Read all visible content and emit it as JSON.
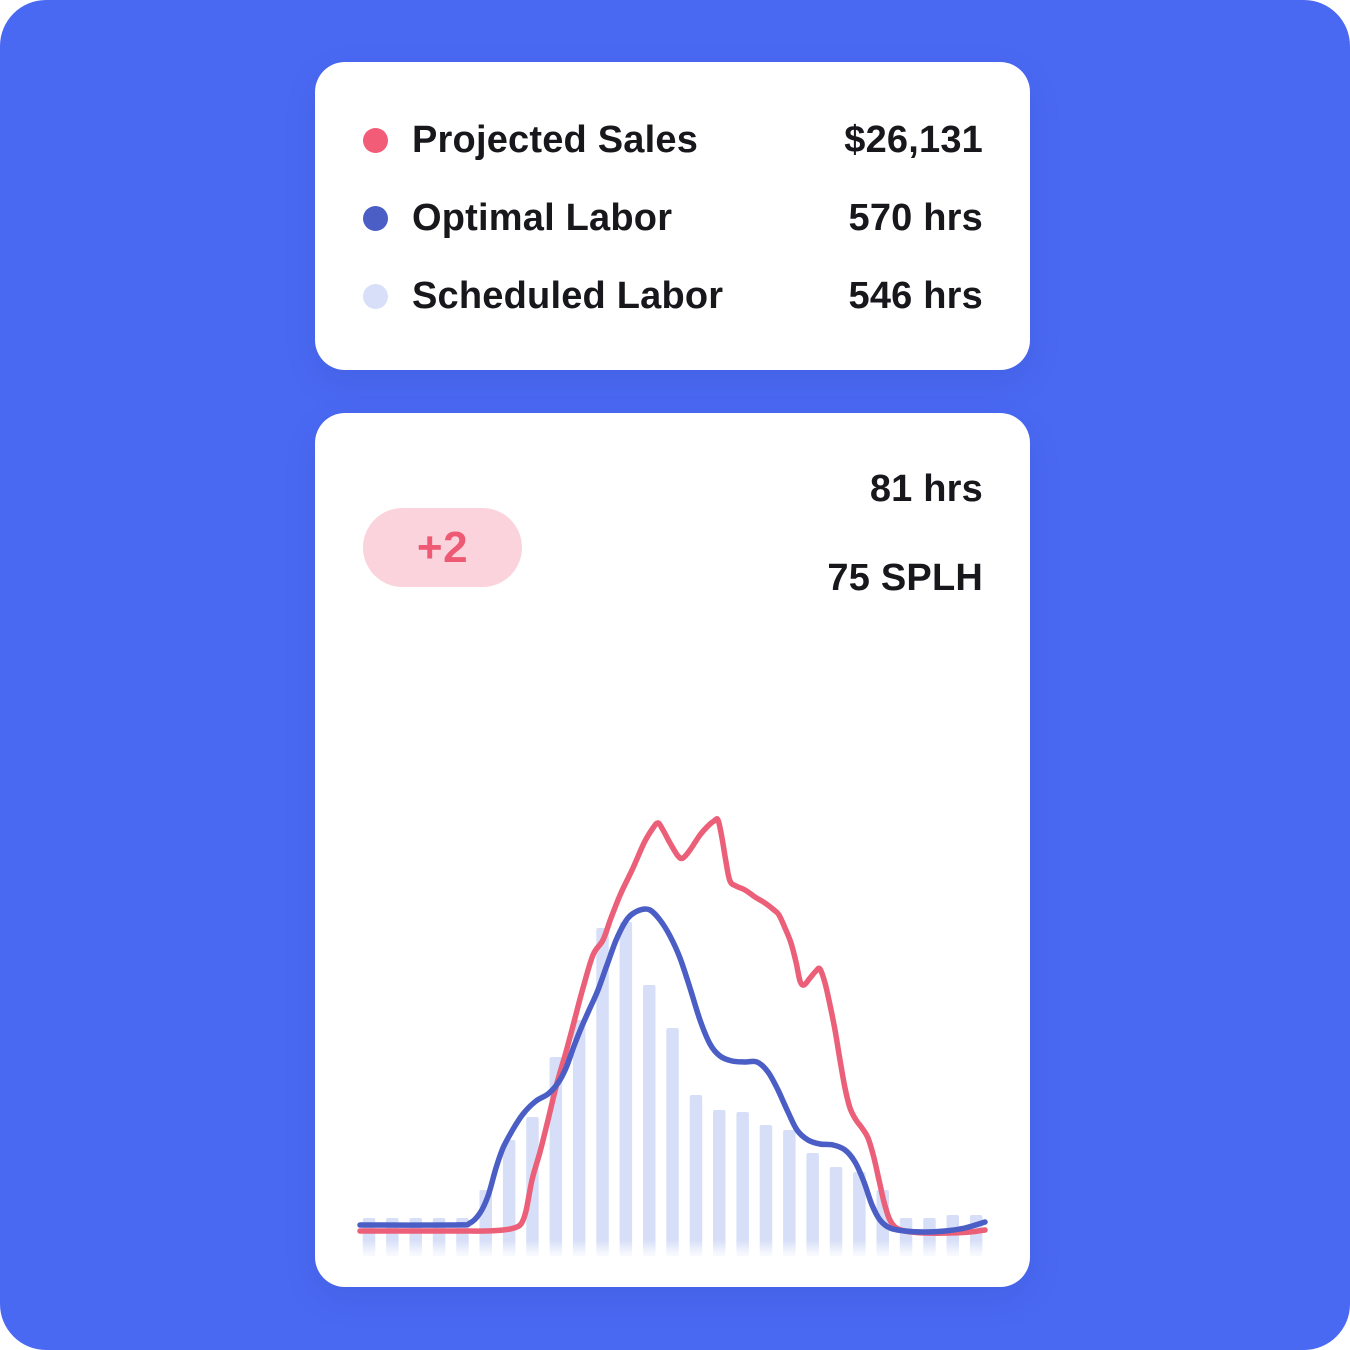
{
  "app": {
    "background_color": "#4A69F2",
    "card_color": "#FFFFFF",
    "text_color": "#17171C"
  },
  "legend_card": {
    "items": [
      {
        "label": "Projected Sales",
        "value": "$26,131",
        "color": "#F25C77"
      },
      {
        "label": "Optimal Labor",
        "value": "570 hrs",
        "color": "#4A5EC6"
      },
      {
        "label": "Scheduled Labor",
        "value": "546 hrs",
        "color": "#D7E0F8"
      }
    ]
  },
  "chart_card": {
    "badge": {
      "label": "+2",
      "bg": "#FBD3DC",
      "color": "#EE5A74"
    },
    "stat_primary": "81 hrs",
    "stat_secondary": "75 SPLH"
  },
  "chart_data": {
    "type": "composite",
    "title": "",
    "x_axis": {
      "labels_visible": false,
      "points": 27,
      "note": "hourly-style slots, no tick labels shown"
    },
    "y_axis": {
      "labels_visible": false,
      "units": "relative pixel height above baseline (no axis shown)"
    },
    "grid": false,
    "legend_position": "separate card above",
    "series": [
      {
        "name": "Projected Sales",
        "type": "line",
        "color": "#EB5F78",
        "points": [
          [
            15,
            9
          ],
          [
            105,
            9
          ],
          [
            140,
            9
          ],
          [
            158,
            10
          ],
          [
            169,
            12
          ],
          [
            176,
            16
          ],
          [
            181,
            29
          ],
          [
            187,
            60
          ],
          [
            195,
            88
          ],
          [
            203,
            120
          ],
          [
            212,
            157
          ],
          [
            221,
            188
          ],
          [
            229,
            218
          ],
          [
            238,
            252
          ],
          [
            248,
            285
          ],
          [
            258,
            300
          ],
          [
            266,
            322
          ],
          [
            276,
            347
          ],
          [
            288,
            372
          ],
          [
            299,
            397
          ],
          [
            308,
            412
          ],
          [
            313,
            417
          ],
          [
            318,
            410
          ],
          [
            325,
            397
          ],
          [
            333,
            384
          ],
          [
            338,
            382
          ],
          [
            345,
            390
          ],
          [
            355,
            405
          ],
          [
            363,
            414
          ],
          [
            369,
            419
          ],
          [
            373,
            420
          ],
          [
            377,
            402
          ],
          [
            381,
            378
          ],
          [
            385,
            359
          ],
          [
            391,
            354
          ],
          [
            400,
            350
          ],
          [
            410,
            343
          ],
          [
            420,
            337
          ],
          [
            429,
            330
          ],
          [
            434,
            325
          ],
          [
            440,
            312
          ],
          [
            446,
            297
          ],
          [
            451,
            278
          ],
          [
            455,
            259
          ],
          [
            459,
            255
          ],
          [
            465,
            262
          ],
          [
            471,
            269
          ],
          [
            475,
            271
          ],
          [
            480,
            257
          ],
          [
            485,
            235
          ],
          [
            490,
            210
          ],
          [
            495,
            180
          ],
          [
            500,
            152
          ],
          [
            505,
            132
          ],
          [
            511,
            120
          ],
          [
            517,
            112
          ],
          [
            523,
            102
          ],
          [
            529,
            82
          ],
          [
            534,
            60
          ],
          [
            539,
            38
          ],
          [
            544,
            22
          ],
          [
            550,
            13
          ],
          [
            560,
            9
          ],
          [
            580,
            7
          ],
          [
            605,
            7
          ],
          [
            625,
            8
          ],
          [
            640,
            10
          ]
        ]
      },
      {
        "name": "Optimal Labor",
        "type": "line",
        "color": "#4A5EC5",
        "points": [
          [
            15,
            15
          ],
          [
            110,
            15
          ],
          [
            125,
            17
          ],
          [
            135,
            27
          ],
          [
            143,
            44
          ],
          [
            151,
            72
          ],
          [
            158,
            92
          ],
          [
            167,
            109
          ],
          [
            178,
            126
          ],
          [
            191,
            139
          ],
          [
            203,
            146
          ],
          [
            213,
            157
          ],
          [
            221,
            172
          ],
          [
            229,
            194
          ],
          [
            237,
            214
          ],
          [
            245,
            232
          ],
          [
            253,
            250
          ],
          [
            262,
            275
          ],
          [
            272,
            302
          ],
          [
            283,
            322
          ],
          [
            295,
            330
          ],
          [
            305,
            330
          ],
          [
            315,
            320
          ],
          [
            325,
            304
          ],
          [
            335,
            282
          ],
          [
            345,
            252
          ],
          [
            355,
            220
          ],
          [
            365,
            196
          ],
          [
            375,
            184
          ],
          [
            387,
            179
          ],
          [
            400,
            178
          ],
          [
            412,
            178
          ],
          [
            423,
            168
          ],
          [
            433,
            150
          ],
          [
            443,
            128
          ],
          [
            452,
            110
          ],
          [
            463,
            100
          ],
          [
            475,
            96
          ],
          [
            488,
            95
          ],
          [
            500,
            90
          ],
          [
            510,
            78
          ],
          [
            519,
            58
          ],
          [
            527,
            35
          ],
          [
            535,
            20
          ],
          [
            545,
            12
          ],
          [
            560,
            9
          ],
          [
            580,
            8
          ],
          [
            600,
            9
          ],
          [
            620,
            12
          ],
          [
            640,
            18
          ]
        ]
      },
      {
        "name": "Scheduled Labor",
        "type": "bar",
        "color": "#D7DFF8",
        "values": [
          22,
          22,
          22,
          22,
          22,
          50,
          100,
          123,
          183,
          220,
          312,
          318,
          255,
          212,
          145,
          130,
          128,
          115,
          110,
          87,
          73,
          68,
          50,
          22,
          22,
          25,
          25
        ]
      }
    ]
  }
}
